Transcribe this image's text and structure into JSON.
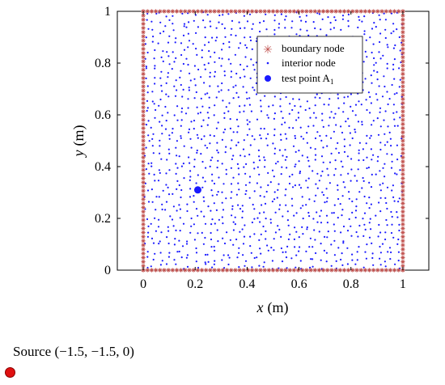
{
  "chart_data": {
    "type": "scatter",
    "xlabel_var": "x",
    "xlabel_unit": "(m)",
    "ylabel_var": "y",
    "ylabel_unit": "(m)",
    "xlim": [
      -0.1,
      1.1
    ],
    "ylim": [
      0,
      1
    ],
    "xticks": [
      "0",
      "0.2",
      "0.4",
      "0.6",
      "0.8",
      "1"
    ],
    "yticks": [
      "0",
      "0.2",
      "0.4",
      "0.6",
      "0.8",
      "1"
    ],
    "x_tick_values": [
      0,
      0.2,
      0.4,
      0.6,
      0.8,
      1
    ],
    "y_tick_values": [
      0,
      0.2,
      0.4,
      0.6,
      0.8,
      1
    ],
    "domain": {
      "x": [
        0,
        1
      ],
      "y": [
        0,
        1
      ]
    },
    "series": [
      {
        "name": "boundary node",
        "marker": "star",
        "color": "#c0504d",
        "count_per_edge": 62
      },
      {
        "name": "interior node",
        "marker": "dot",
        "color": "#1a1aff",
        "count": 1400
      },
      {
        "name": "test point A",
        "subscript": "1",
        "marker": "filled-circle",
        "color": "#1a1aff",
        "x": 0.21,
        "y": 0.31
      }
    ],
    "legend_position": "top-right",
    "grid": false
  },
  "source": {
    "label": "Source",
    "coords": "(−1.5, −1.5,  0)",
    "color": "#e01010"
  }
}
